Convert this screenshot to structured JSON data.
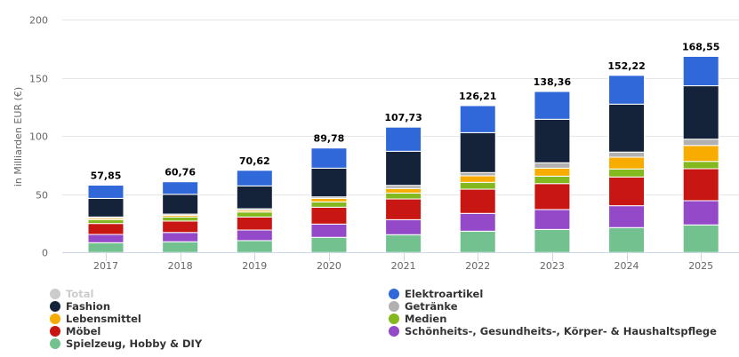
{
  "chart_data": {
    "type": "bar",
    "stacked": true,
    "title": "",
    "xlabel": "",
    "ylabel": "in Milliarden EUR (€)",
    "ylim": [
      0,
      200
    ],
    "yticks": [
      "0",
      "50",
      "100",
      "150",
      "200"
    ],
    "ytick_values": [
      0,
      50,
      100,
      150,
      200
    ],
    "grid": true,
    "legend_position": "bottom",
    "categories": [
      "2017",
      "2018",
      "2019",
      "2020",
      "2021",
      "2022",
      "2023",
      "2024",
      "2025"
    ],
    "totals": [
      57.85,
      60.76,
      70.62,
      89.78,
      107.73,
      126.21,
      138.36,
      152.22,
      168.55
    ],
    "total_labels": [
      "57,85",
      "60,76",
      "70,62",
      "89,78",
      "107,73",
      "126,21",
      "138,36",
      "152,22",
      "168,55"
    ],
    "series": [
      {
        "name": "Spielzeug, Hobby & DIY",
        "color": "#74c190",
        "values": [
          8.4,
          9.2,
          10.2,
          13.0,
          15.3,
          18.3,
          19.8,
          21.4,
          23.7
        ]
      },
      {
        "name": "Schönheits-, Gesundheits-, Körper- & Haushaltspflege",
        "color": "#9449c8",
        "values": [
          7.1,
          8.0,
          9.1,
          11.4,
          12.9,
          15.3,
          17.1,
          18.8,
          20.8
        ]
      },
      {
        "name": "Möbel",
        "color": "#c81612",
        "values": [
          9.4,
          9.8,
          11.2,
          14.5,
          17.8,
          20.8,
          22.3,
          24.7,
          27.5
        ]
      },
      {
        "name": "Medien",
        "color": "#84b81f",
        "values": [
          3.3,
          3.5,
          4.3,
          4.6,
          5.1,
          5.9,
          6.4,
          6.9,
          6.3
        ]
      },
      {
        "name": "Lebensmittel",
        "color": "#f8ac00",
        "values": [
          1.3,
          1.4,
          1.5,
          3.0,
          3.9,
          5.6,
          6.9,
          10.1,
          13.7
        ]
      },
      {
        "name": "Getränke",
        "color": "#b1b1b1",
        "values": [
          1.0,
          1.1,
          1.3,
          1.3,
          2.7,
          2.8,
          4.6,
          4.4,
          5.4
        ]
      },
      {
        "name": "Fashion",
        "color": "#15233a",
        "values": [
          16.0,
          17.0,
          19.6,
          24.7,
          29.3,
          34.3,
          37.4,
          41.2,
          45.9
        ]
      },
      {
        "name": "Elektroartikel",
        "color": "#3068d9",
        "values": [
          11.35,
          10.76,
          13.42,
          17.28,
          20.73,
          23.21,
          23.86,
          24.72,
          25.25
        ]
      }
    ]
  },
  "legend": {
    "items": [
      {
        "name": "Total",
        "color": "#cccccc",
        "hidden": true
      },
      {
        "name": "Elektroartikel",
        "color": "#3068d9"
      },
      {
        "name": "Fashion",
        "color": "#15233a"
      },
      {
        "name": "Getränke",
        "color": "#b1b1b1"
      },
      {
        "name": "Lebensmittel",
        "color": "#f8ac00"
      },
      {
        "name": "Medien",
        "color": "#84b81f"
      },
      {
        "name": "Möbel",
        "color": "#c81612"
      },
      {
        "name": "Schönheits-, Gesundheits-, Körper- & Haushaltspflege",
        "color": "#9449c8"
      },
      {
        "name": "Spielzeug, Hobby & DIY",
        "color": "#74c190"
      }
    ]
  }
}
